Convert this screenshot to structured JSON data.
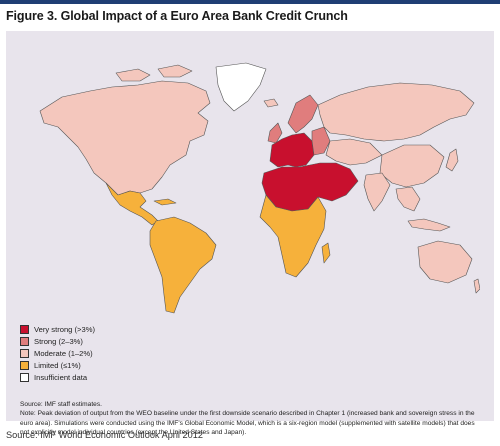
{
  "figure": {
    "title": "Figure 3. Global Impact of a Euro Area Bank Credit Crunch"
  },
  "legend": [
    {
      "label": "Very strong (>3%)",
      "color": "#c8102e"
    },
    {
      "label": "Strong (2–3%)",
      "color": "#e07d7d"
    },
    {
      "label": "Moderate (1–2%)",
      "color": "#f4c7bd"
    },
    {
      "label": "Limited (≤1%)",
      "color": "#f6b13b"
    },
    {
      "label": "Insufficient data",
      "color": "#ffffff"
    }
  ],
  "colors": {
    "ocean": "#e8e4ec",
    "border": "#555555"
  },
  "notes": {
    "source": "Source: IMF staff estimates.",
    "note": "Note: Peak deviation of output from the WEO baseline under the first downside scenario described in Chapter 1 (increased bank and sovereign stress in the euro area). Simulations were conducted using the IMF's Global Economic Model, which is a six-region model (supplemented with satellite models) that does not explicitly model individual countries (except the United States and Japan)."
  },
  "footer": {
    "source": "Source: IMF World Economic Outlook April 2012"
  }
}
